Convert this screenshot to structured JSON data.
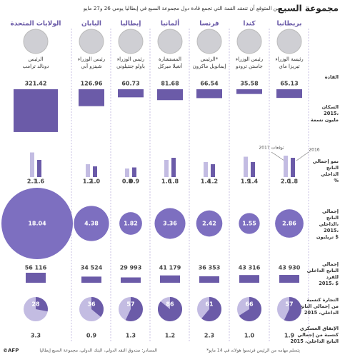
{
  "title": "مجموعة السبع",
  "subtitle": "من المتوقع أن تنعقد القمة التي تجمع قادة دول مجموعة السبع في إيطاليا يومي 26 و27 مايو",
  "row_labels": {
    "leaders": [
      "القادة"
    ],
    "population": [
      "السكان",
      "2015،",
      "مليون نسمة"
    ],
    "growth": [
      "نمو إجمالي",
      "الناتج",
      "الداخلي",
      "%"
    ],
    "gdp": [
      "إجمالي",
      "الناتج",
      "الداخلي،",
      "2015،",
      "تريليون $"
    ],
    "gdp_per_capita": [
      "إجمالي",
      "الناتج الداخلي",
      "للفرد",
      "2015، $"
    ],
    "trade": [
      "التجارة كنسبة",
      "من إجمالي الناتج",
      "الداخلي، 2015"
    ],
    "military": [
      "الإنفاق العسكري",
      "كنسبة من إجمالي",
      "الناتج الداخلي، 2015"
    ]
  },
  "annotations": {
    "year_2016": "2016",
    "year_2017": "2017 توقعات"
  },
  "countries": [
    {
      "name": "بريطانيا",
      "leader_title": "رئيسة الوزراء",
      "leader_name": "تيريزا ماي",
      "population": 65.13,
      "growth_2017": {
        "value": 2,
        "label": "2.0"
      },
      "growth_2016": 1.8,
      "gdp": 2.86,
      "gdp_per_capita": {
        "value": 43930,
        "label": "43 930"
      },
      "trade": 57,
      "military": 1.9
    },
    {
      "name": "كندا",
      "leader_title": "رئيس الوزراء",
      "leader_name": "جاستن ترودو",
      "population": 35.58,
      "growth_2017": 1.9,
      "growth_2016": 1.4,
      "gdp": 1.55,
      "gdp_per_capita": {
        "value": 43316,
        "label": "43 316"
      },
      "trade": 66,
      "military": {
        "value": 1,
        "label": "1.0"
      }
    },
    {
      "name": "فرنسا",
      "leader_title": "الرئيس*",
      "leader_name": "إيمانويل ماكرون",
      "population": 66.54,
      "growth_2017": 1.4,
      "growth_2016": 1.2,
      "gdp": 2.42,
      "gdp_per_capita": {
        "value": 36353,
        "label": "36 353"
      },
      "trade": 61,
      "military": 2.3
    },
    {
      "name": "ألمانيا",
      "leader_title": "المستشارة",
      "leader_name": "أنغيلا ميركل",
      "population": 81.68,
      "growth_2017": 1.6,
      "growth_2016": 1.8,
      "gdp": 3.36,
      "gdp_per_capita": {
        "value": 41179,
        "label": "41 179"
      },
      "trade": 86,
      "military": 1.2
    },
    {
      "name": "إيطاليا",
      "leader_title": "رئيس الوزراء",
      "leader_name": "باولو جنتيلوني",
      "population": 60.73,
      "growth_2017": 0.8,
      "growth_2016": 0.9,
      "gdp": 1.82,
      "gdp_per_capita": {
        "value": 29993,
        "label": "29 993"
      },
      "trade": 57,
      "military": 1.3
    },
    {
      "name": "اليابان",
      "leader_title": "رئيس الوزراء",
      "leader_name": "شينزو آبي",
      "population": 126.96,
      "growth_2017": 1.2,
      "growth_2016": {
        "value": 1,
        "label": "1.0"
      },
      "gdp": 4.38,
      "gdp_per_capita": {
        "value": 34524,
        "label": "34 524"
      },
      "trade": 36,
      "military": 0.9
    },
    {
      "name": "الولايات المتحدة",
      "leader_title": "الرئيس",
      "leader_name": "دونالد ترامب",
      "population": 321.42,
      "growth_2017": 2.3,
      "growth_2016": 1.6,
      "gdp": 18.04,
      "gdp_per_capita": {
        "value": 56116,
        "label": "56 116"
      },
      "trade": 28,
      "military": 3.3
    }
  ],
  "footer": {
    "credit": "©AFP",
    "source": "المصادر: صندوق النقد الدولي، البنك الدولي، مجموعة السبع إيطاليا",
    "note": "*يتسلم مهامه من الرئيس فرنسوا هولاند في 14 مايو"
  }
}
